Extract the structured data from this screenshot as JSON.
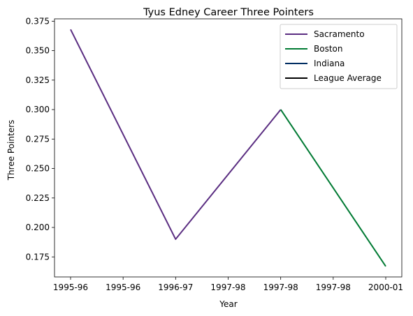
{
  "chart_data": {
    "type": "line",
    "title": "Tyus Edney Career Three Pointers",
    "xlabel": "Year",
    "ylabel": "Three Pointers",
    "categories": [
      "1995-96",
      "1995-96",
      "1996-97",
      "1997-98",
      "1997-98",
      "1997-98",
      "2000-01"
    ],
    "ylim": [
      0.158,
      0.377
    ],
    "yticks": [
      "0.175",
      "0.200",
      "0.225",
      "0.250",
      "0.275",
      "0.300",
      "0.325",
      "0.350",
      "0.375"
    ],
    "grid": false,
    "legend_position": "top-right",
    "series": [
      {
        "name": "Sacramento",
        "color": "#5a2d81",
        "points": [
          [
            0,
            0.368
          ],
          [
            2,
            0.19
          ],
          [
            4,
            0.3
          ]
        ]
      },
      {
        "name": "Boston",
        "color": "#007a33",
        "points": [
          [
            4,
            0.3
          ],
          [
            6,
            0.167
          ]
        ]
      },
      {
        "name": "Indiana",
        "color": "#002d62",
        "points": []
      },
      {
        "name": "League Average",
        "color": "#000000",
        "points": []
      }
    ]
  }
}
